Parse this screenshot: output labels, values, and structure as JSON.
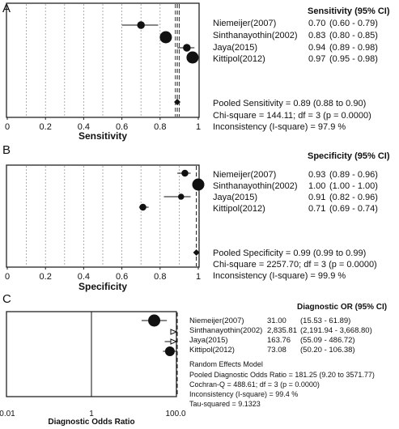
{
  "chart_data": [
    {
      "type": "forest",
      "panel_letter": "A",
      "xlabel": "Sensitivity",
      "xlim": [
        0,
        1
      ],
      "xticks": [
        "0",
        "0.2",
        "0.4",
        "0.6",
        "0.8",
        "1"
      ],
      "pooled_line": 0.89,
      "column_header": "Sensitivity (95% CI)",
      "studies": [
        {
          "name": "Niemeijer(2007)",
          "est": 0.7,
          "lo": 0.6,
          "hi": 0.79,
          "est_label": "0.70",
          "ci_label": "(0.60 - 0.79)",
          "weight": 0.45
        },
        {
          "name": "Sinthanayothin(2002)",
          "est": 0.83,
          "lo": 0.8,
          "hi": 0.85,
          "est_label": "0.83",
          "ci_label": "(0.80 - 0.85)",
          "weight": 1.0
        },
        {
          "name": "Jaya(2015)",
          "est": 0.94,
          "lo": 0.89,
          "hi": 0.98,
          "est_label": "0.94",
          "ci_label": "(0.89 - 0.98)",
          "weight": 0.45
        },
        {
          "name": "Kittipol(2012)",
          "est": 0.97,
          "lo": 0.95,
          "hi": 0.98,
          "est_label": "0.97",
          "ci_label": "(0.95 - 0.98)",
          "weight": 1.0
        }
      ],
      "pooled": {
        "est": 0.89,
        "lo": 0.88,
        "hi": 0.9
      },
      "summary": [
        "Pooled Sensitivity = 0.89 (0.88 to 0.90)",
        "Chi-square = 144.11; df = 3 (p = 0.0000)",
        "Inconsistency (I-square) = 97.9 %"
      ]
    },
    {
      "type": "forest",
      "panel_letter": "B",
      "xlabel": "Specificity",
      "xlim": [
        0,
        1
      ],
      "xticks": [
        "0",
        "0.2",
        "0.4",
        "0.6",
        "0.8",
        "1"
      ],
      "pooled_line": 0.99,
      "column_header": "Specificity (95% CI)",
      "studies": [
        {
          "name": "Niemeijer(2007)",
          "est": 0.93,
          "lo": 0.89,
          "hi": 0.96,
          "est_label": "0.93",
          "ci_label": "(0.89 - 0.96)",
          "weight": 0.35
        },
        {
          "name": "Sinthanayothin(2002)",
          "est": 1.0,
          "lo": 1.0,
          "hi": 1.0,
          "est_label": "1.00",
          "ci_label": "(1.00 - 1.00)",
          "weight": 1.0
        },
        {
          "name": "Jaya(2015)",
          "est": 0.91,
          "lo": 0.82,
          "hi": 0.96,
          "est_label": "0.91",
          "ci_label": "(0.82 - 0.96)",
          "weight": 0.25
        },
        {
          "name": "Kittipol(2012)",
          "est": 0.71,
          "lo": 0.69,
          "hi": 0.74,
          "est_label": "0.71",
          "ci_label": "(0.69 - 0.74)",
          "weight": 0.35
        }
      ],
      "pooled": {
        "est": 0.99,
        "lo": 0.99,
        "hi": 0.99
      },
      "summary": [
        "Pooled Specificity = 0.99 (0.99 to 0.99)",
        "Chi-square = 2257.70; df = 3 (p = 0.0000)",
        "Inconsistency (I-square) = 99.9 %"
      ]
    },
    {
      "type": "forest",
      "panel_letter": "C",
      "xlabel": "Diagnostic Odds Ratio",
      "scale": "log",
      "xlim": [
        0.01,
        100
      ],
      "xticks": [
        "0.01",
        "1",
        "100.0"
      ],
      "pooled_line": 181.25,
      "column_header": "Diagnostic OR (95% CI)",
      "studies": [
        {
          "name": "Niemeijer(2007)",
          "est": 31.0,
          "lo": 15.53,
          "hi": 61.89,
          "est_label": "31.00",
          "ci_label": "(15.53 - 61.89)",
          "weight": 1.0
        },
        {
          "name": "Sinthanayothin(2002)",
          "est": 2835.81,
          "lo": 2191.94,
          "hi": 3668.8,
          "est_label": "2,835.81",
          "ci_label": "(2,191.94 - 3,668.80)",
          "weight": 0.3
        },
        {
          "name": "Jaya(2015)",
          "est": 163.76,
          "lo": 55.09,
          "hi": 486.72,
          "est_label": "163.76",
          "ci_label": "(55.09 - 486.72)",
          "weight": 0.3
        },
        {
          "name": "Kittipol(2012)",
          "est": 73.08,
          "lo": 50.2,
          "hi": 106.38,
          "est_label": "73.08",
          "ci_label": "(50.20 - 106.38)",
          "weight": 0.7
        }
      ],
      "summary_title": "Random Effects Model",
      "summary": [
        "Pooled Diagnostic Odds Ratio = 181.25 (9.20 to 3571.77)",
        "Cochran-Q = 488.61; df = 3 (p = 0.0000)",
        "Inconsistency (I-square) = 99.4 %",
        "Tau-squared = 9.1323"
      ]
    }
  ]
}
